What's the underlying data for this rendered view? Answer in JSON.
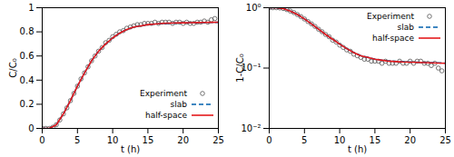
{
  "chart_data": [
    {
      "type": "line",
      "xlabel": "t (h)",
      "ylabel": "C/C₀",
      "xlim": [
        0,
        25
      ],
      "xticks": [
        0,
        5,
        10,
        15,
        20,
        25
      ],
      "ylim": [
        0,
        1
      ],
      "yticks": [
        0,
        0.2,
        0.4,
        0.6,
        0.8,
        1
      ],
      "grid": false,
      "legend": "bottom-right",
      "series": [
        {
          "name": "Experiment",
          "type": "scatter",
          "marker": "circle",
          "color": "#555555",
          "x": [
            0,
            0.5,
            1,
            1.5,
            2,
            2.5,
            3,
            3.5,
            4,
            4.5,
            5,
            5.5,
            6,
            6.5,
            7,
            7.5,
            8,
            8.5,
            9,
            9.5,
            10,
            10.5,
            11,
            11.5,
            12,
            12.5,
            13,
            13.5,
            14,
            14.5,
            15,
            15.5,
            16,
            16.5,
            17,
            17.5,
            18,
            18.5,
            19,
            19.5,
            20,
            20.5,
            21,
            21.5,
            22,
            22.5,
            23,
            23.5,
            24,
            24.5
          ],
          "values": [
            0,
            0,
            0,
            0.01,
            0.03,
            0.07,
            0.12,
            0.17,
            0.23,
            0.29,
            0.35,
            0.41,
            0.46,
            0.51,
            0.56,
            0.6,
            0.64,
            0.67,
            0.71,
            0.73,
            0.76,
            0.78,
            0.8,
            0.81,
            0.83,
            0.84,
            0.85,
            0.86,
            0.86,
            0.87,
            0.87,
            0.87,
            0.88,
            0.87,
            0.88,
            0.88,
            0.88,
            0.87,
            0.88,
            0.88,
            0.87,
            0.88,
            0.87,
            0.87,
            0.88,
            0.88,
            0.89,
            0.88,
            0.9,
            0.91
          ]
        },
        {
          "name": "slab",
          "type": "line",
          "line_style": "dashed",
          "color": "#0060ad",
          "x": [
            0,
            1,
            2,
            3,
            4,
            5,
            6,
            7,
            8,
            9,
            10,
            11,
            12,
            13,
            14,
            15,
            16,
            17,
            18,
            19,
            20,
            21,
            22,
            23,
            24,
            25
          ],
          "values": [
            0,
            0,
            0.03,
            0.12,
            0.23,
            0.35,
            0.46,
            0.56,
            0.64,
            0.7,
            0.75,
            0.79,
            0.82,
            0.84,
            0.85,
            0.86,
            0.865,
            0.868,
            0.871,
            0.873,
            0.874,
            0.875,
            0.876,
            0.877,
            0.878,
            0.879
          ]
        },
        {
          "name": "half-space",
          "type": "line",
          "line_style": "solid",
          "color": "#e41a1c",
          "x": [
            0,
            1,
            2,
            3,
            4,
            5,
            6,
            7,
            8,
            9,
            10,
            11,
            12,
            13,
            14,
            15,
            16,
            17,
            18,
            19,
            20,
            21,
            22,
            23,
            24,
            25
          ],
          "values": [
            0,
            0,
            0.03,
            0.12,
            0.23,
            0.35,
            0.46,
            0.56,
            0.64,
            0.7,
            0.75,
            0.79,
            0.82,
            0.84,
            0.85,
            0.86,
            0.865,
            0.87,
            0.872,
            0.874,
            0.875,
            0.876,
            0.877,
            0.878,
            0.879,
            0.88
          ]
        }
      ]
    },
    {
      "type": "line",
      "xlabel": "t (h)",
      "ylabel": "1-C/C₀",
      "log": "y",
      "xlim": [
        0,
        25
      ],
      "xticks": [
        0,
        5,
        10,
        15,
        20,
        25
      ],
      "ylim": [
        0.01,
        1
      ],
      "yticks": [
        {
          "value": 0.01,
          "label": "10⁻²"
        },
        {
          "value": 0.1,
          "label": "10⁻¹"
        },
        {
          "value": 1,
          "label": "10⁰"
        }
      ],
      "grid": false,
      "legend": "top-right",
      "series": [
        {
          "name": "Experiment",
          "type": "scatter",
          "marker": "circle",
          "color": "#555555",
          "x": [
            0,
            0.5,
            1,
            1.5,
            2,
            2.5,
            3,
            3.5,
            4,
            4.5,
            5,
            5.5,
            6,
            6.5,
            7,
            7.5,
            8,
            8.5,
            9,
            9.5,
            10,
            10.5,
            11,
            11.5,
            12,
            12.5,
            13,
            13.5,
            14,
            14.5,
            15,
            15.5,
            16,
            16.5,
            17,
            17.5,
            18,
            18.5,
            19,
            19.5,
            20,
            20.5,
            21,
            21.5,
            22,
            22.5,
            23,
            23.5,
            24,
            24.5
          ],
          "values": [
            1,
            1,
            1,
            0.99,
            0.97,
            0.93,
            0.88,
            0.83,
            0.77,
            0.71,
            0.65,
            0.59,
            0.54,
            0.49,
            0.44,
            0.4,
            0.36,
            0.33,
            0.29,
            0.27,
            0.24,
            0.22,
            0.2,
            0.19,
            0.17,
            0.16,
            0.15,
            0.14,
            0.14,
            0.13,
            0.13,
            0.13,
            0.12,
            0.13,
            0.12,
            0.12,
            0.12,
            0.13,
            0.12,
            0.12,
            0.13,
            0.12,
            0.13,
            0.13,
            0.12,
            0.12,
            0.11,
            0.12,
            0.1,
            0.09
          ]
        },
        {
          "name": "slab",
          "type": "line",
          "line_style": "dashed",
          "color": "#0060ad",
          "x": [
            0,
            1,
            2,
            3,
            4,
            5,
            6,
            7,
            8,
            9,
            10,
            11,
            12,
            13,
            14,
            15,
            16,
            17,
            18,
            19,
            20,
            21,
            22,
            23,
            24,
            25
          ],
          "values": [
            1,
            1,
            0.97,
            0.88,
            0.77,
            0.65,
            0.54,
            0.44,
            0.36,
            0.3,
            0.25,
            0.21,
            0.18,
            0.16,
            0.15,
            0.14,
            0.135,
            0.132,
            0.129,
            0.127,
            0.126,
            0.125,
            0.124,
            0.123,
            0.122,
            0.121
          ]
        },
        {
          "name": "half-space",
          "type": "line",
          "line_style": "solid",
          "color": "#e41a1c",
          "x": [
            0,
            1,
            2,
            3,
            4,
            5,
            6,
            7,
            8,
            9,
            10,
            11,
            12,
            13,
            14,
            15,
            16,
            17,
            18,
            19,
            20,
            21,
            22,
            23,
            24,
            25
          ],
          "values": [
            1,
            1,
            0.97,
            0.88,
            0.77,
            0.65,
            0.54,
            0.44,
            0.36,
            0.3,
            0.25,
            0.21,
            0.18,
            0.16,
            0.15,
            0.14,
            0.135,
            0.13,
            0.128,
            0.126,
            0.125,
            0.124,
            0.123,
            0.122,
            0.121,
            0.12
          ]
        }
      ]
    }
  ]
}
